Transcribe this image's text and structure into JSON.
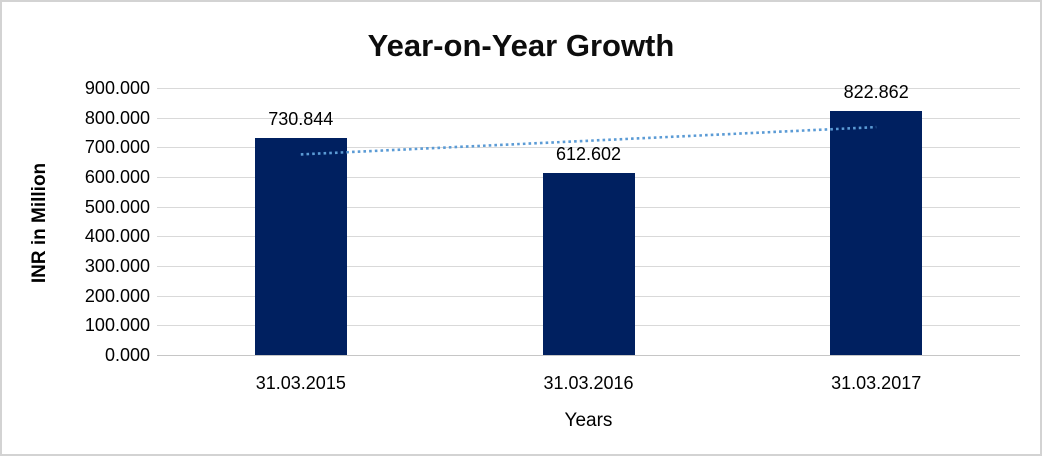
{
  "chart_data": {
    "type": "bar",
    "title": "Year-on-Year Growth",
    "xlabel": "Years",
    "ylabel": "INR in Million",
    "categories": [
      "31.03.2015",
      "31.03.2016",
      "31.03.2017"
    ],
    "values": [
      730.844,
      612.602,
      822.862
    ],
    "value_labels": [
      "730.844",
      "612.602",
      "822.862"
    ],
    "ylim": [
      0,
      900
    ],
    "ytick_step": 100,
    "ytick_labels": [
      "0.000",
      "100.000",
      "200.000",
      "300.000",
      "400.000",
      "500.000",
      "600.000",
      "700.000",
      "800.000",
      "900.000"
    ],
    "grid": true,
    "legend_position": "none",
    "trendline": {
      "type": "linear",
      "style": "dotted"
    },
    "colors": {
      "bar": "#002060",
      "trendline": "#5b9bd5",
      "gridline": "#d9d9d9",
      "axis_line": "#c6c6c6",
      "text": "#000000",
      "frame_border": "#d3d3d3",
      "background": "#ffffff"
    }
  }
}
